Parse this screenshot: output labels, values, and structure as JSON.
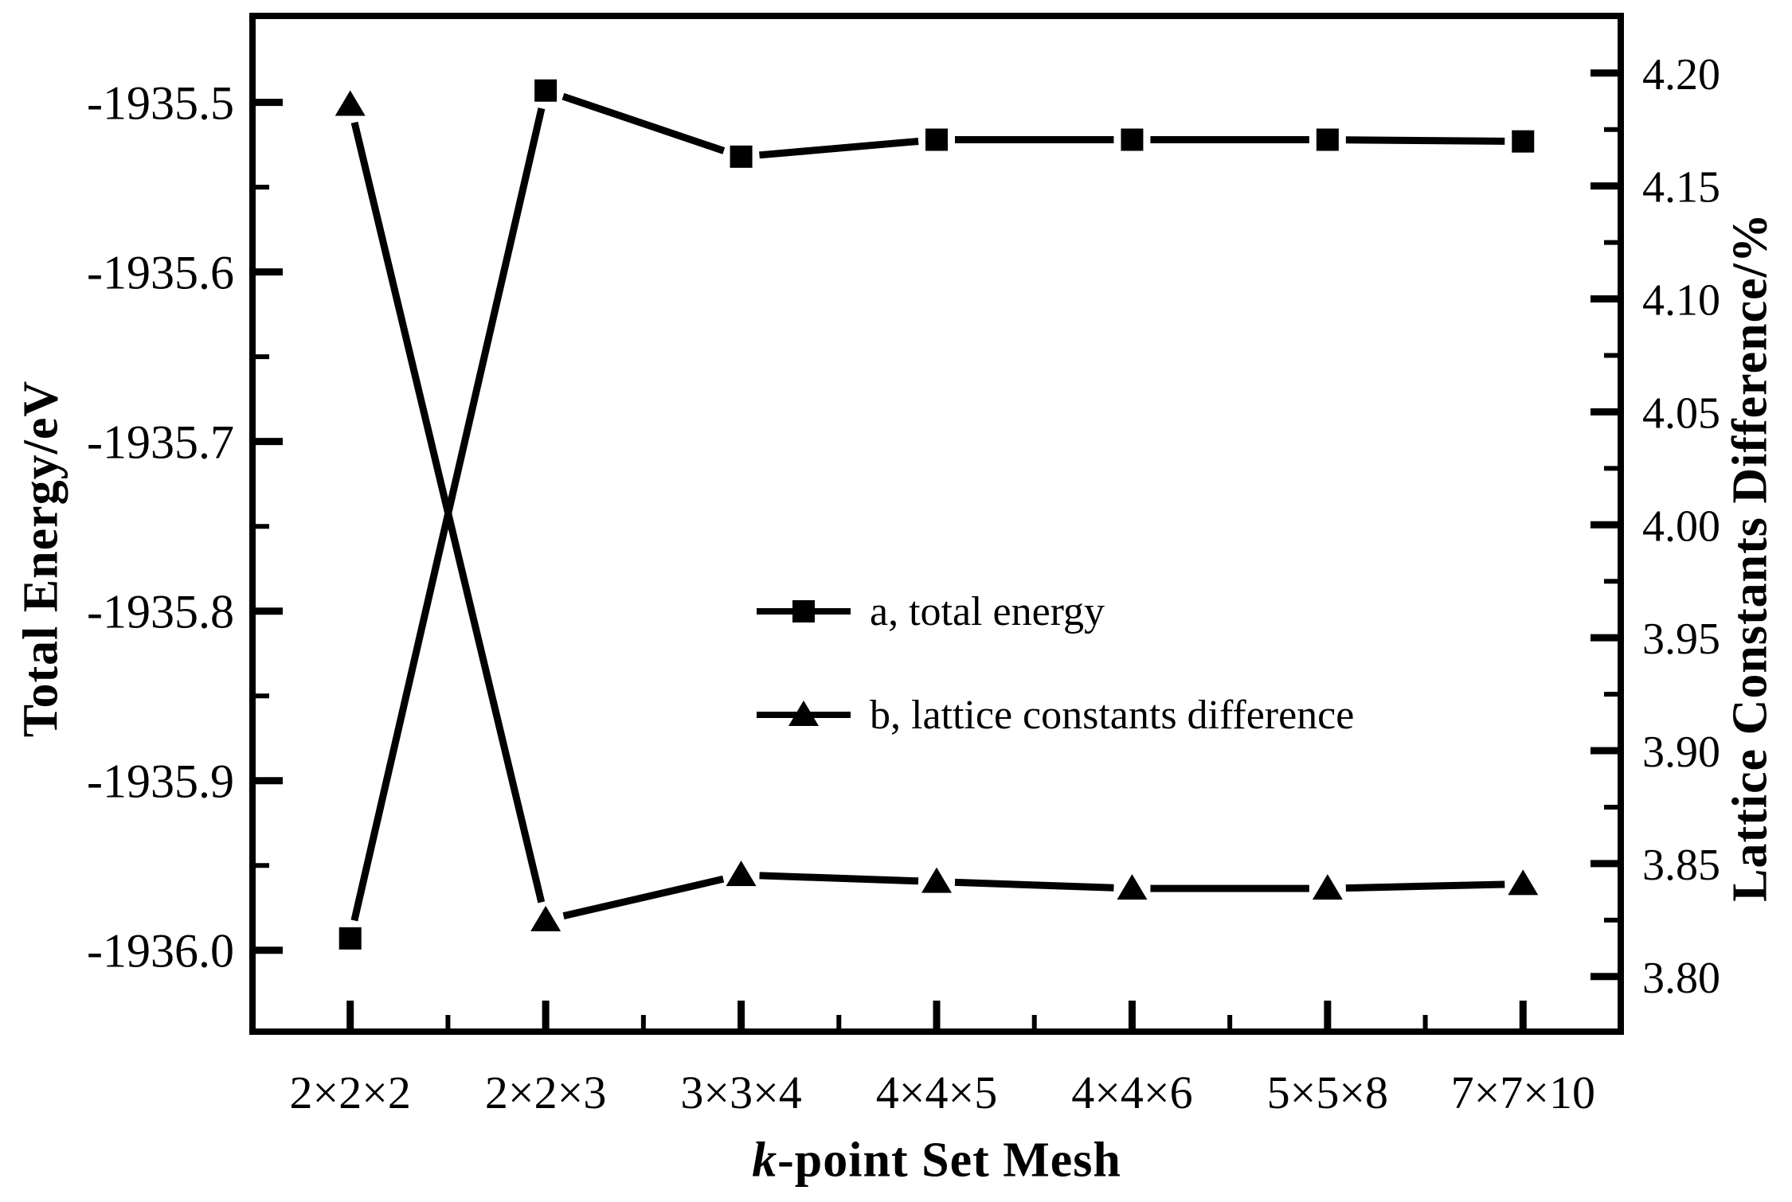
{
  "figure": {
    "background": "#ffffff",
    "ink_color": "#000000"
  },
  "chart_data": {
    "type": "line",
    "title": "",
    "grid": false,
    "legend_position": "center",
    "categories": [
      "2×2×2",
      "2×2×3",
      "3×3×4",
      "4×4×5",
      "4×4×6",
      "5×5×8",
      "7×7×10"
    ],
    "xlabel": "k-point Set Mesh",
    "xlabel_parts": {
      "italic": "k",
      "rest": "-point Set Mesh"
    },
    "left_axis": {
      "label": "Total Energy/eV",
      "ylim": [
        -1936.048,
        -1935.449
      ],
      "major_ticks": [
        {
          "value": -1935.5,
          "label": "-1935.5"
        },
        {
          "value": -1935.6,
          "label": "-1935.6"
        },
        {
          "value": -1935.7,
          "label": "-1935.7"
        },
        {
          "value": -1935.8,
          "label": "-1935.8"
        },
        {
          "value": -1935.9,
          "label": "-1935.9"
        },
        {
          "value": -1936.0,
          "label": "-1936.0"
        }
      ],
      "minor_ticks": [
        -1935.55,
        -1935.65,
        -1935.75,
        -1935.85,
        -1935.95
      ]
    },
    "right_axis": {
      "label": "Lattice Constants Difference/%",
      "ylim": [
        3.7756,
        4.2253
      ],
      "major_ticks": [
        {
          "value": 4.2,
          "label": "4.20"
        },
        {
          "value": 4.15,
          "label": "4.15"
        },
        {
          "value": 4.1,
          "label": "4.10"
        },
        {
          "value": 4.05,
          "label": "4.05"
        },
        {
          "value": 4.0,
          "label": "4.00"
        },
        {
          "value": 3.95,
          "label": "3.95"
        },
        {
          "value": 3.9,
          "label": "3.90"
        },
        {
          "value": 3.85,
          "label": "3.85"
        },
        {
          "value": 3.8,
          "label": "3.80"
        }
      ],
      "minor_ticks": [
        4.175,
        4.125,
        4.075,
        4.025,
        3.975,
        3.925,
        3.875,
        3.825
      ]
    },
    "series": [
      {
        "name": "a, total energy",
        "axis": "left",
        "marker": "square",
        "values": [
          -1935.993,
          -1935.493,
          -1935.532,
          -1935.522,
          -1935.522,
          -1935.522,
          -1935.523
        ]
      },
      {
        "name": "b, lattice constants difference",
        "axis": "right",
        "marker": "triangle",
        "values": [
          4.186,
          3.825,
          3.845,
          3.842,
          3.839,
          3.839,
          3.841
        ]
      }
    ]
  }
}
